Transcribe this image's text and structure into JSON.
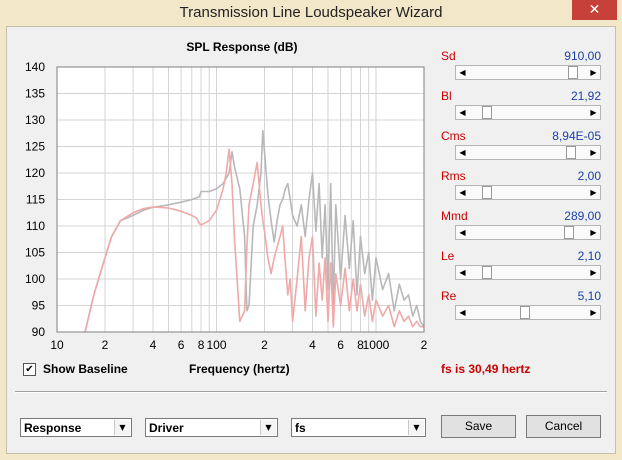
{
  "window": {
    "title": "Transmission Line Loudspeaker Wizard",
    "close_glyph": "✕"
  },
  "chart_title": "SPL Response (dB)",
  "chart_data": {
    "type": "line",
    "title": "SPL Response (dB)",
    "xlabel": "Frequency (hertz)",
    "ylabel": "",
    "xscale": "log",
    "xlim": [
      10,
      2000
    ],
    "ylim": [
      90,
      140
    ],
    "yticks": [
      90,
      95,
      100,
      105,
      110,
      115,
      120,
      125,
      130,
      135,
      140
    ],
    "xtick_labels": [
      {
        "x": 10,
        "label": "10"
      },
      {
        "x": 20,
        "label": "2"
      },
      {
        "x": 40,
        "label": "4"
      },
      {
        "x": 60,
        "label": "6"
      },
      {
        "x": 80,
        "label": "8"
      },
      {
        "x": 100,
        "label": "100"
      },
      {
        "x": 200,
        "label": "2"
      },
      {
        "x": 400,
        "label": "4"
      },
      {
        "x": 600,
        "label": "6"
      },
      {
        "x": 800,
        "label": "8"
      },
      {
        "x": 1000,
        "label": "1000"
      },
      {
        "x": 2000,
        "label": "2"
      }
    ],
    "grid": true,
    "series": [
      {
        "color": "#b8b8b8",
        "x": [
          15,
          17,
          20,
          22,
          25,
          30,
          35,
          40,
          50,
          60,
          70,
          75,
          78,
          80,
          90,
          100,
          110,
          120,
          125,
          130,
          140,
          150,
          155,
          160,
          170,
          180,
          190,
          195,
          200,
          210,
          220,
          230,
          240,
          250,
          260,
          270,
          280,
          300,
          320,
          340,
          360,
          380,
          400,
          420,
          440,
          460,
          480,
          500,
          520,
          540,
          560,
          600,
          640,
          680,
          720,
          760,
          800,
          850,
          900,
          950,
          1000,
          1100,
          1200,
          1300,
          1400,
          1500,
          1600,
          1700,
          1800,
          1900,
          2000
        ],
        "y": [
          90,
          97,
          104,
          108,
          111,
          112,
          113,
          113.5,
          114,
          114.5,
          115,
          115.3,
          115.5,
          116.5,
          116.5,
          117,
          118,
          120,
          124,
          121,
          117,
          108,
          94,
          95,
          110,
          114,
          120,
          128,
          124,
          116,
          111,
          107,
          111,
          114,
          115,
          117,
          118,
          112,
          110,
          114,
          108,
          115,
          120,
          109,
          118,
          104,
          114,
          98,
          118,
          95,
          114,
          100,
          112,
          102,
          111,
          97,
          108,
          101,
          105,
          96,
          104,
          98,
          101,
          94,
          99,
          96,
          97,
          93,
          95,
          92,
          91
        ]
      },
      {
        "color": "#f0a8a8",
        "x": [
          15,
          17,
          20,
          22,
          25,
          30,
          35,
          40,
          50,
          60,
          70,
          75,
          78,
          80,
          90,
          100,
          110,
          115,
          120,
          125,
          130,
          140,
          150,
          155,
          160,
          170,
          180,
          190,
          195,
          200,
          210,
          220,
          230,
          240,
          250,
          260,
          270,
          280,
          290,
          300,
          320,
          340,
          360,
          380,
          400,
          420,
          440,
          460,
          480,
          500,
          520,
          540,
          560,
          600,
          640,
          680,
          720,
          760,
          800,
          850,
          900,
          950,
          1000,
          1100,
          1200,
          1300,
          1400,
          1500,
          1600,
          1700,
          1800,
          1900,
          2000
        ],
        "y": [
          90,
          97,
          104,
          108,
          111,
          112.5,
          113.3,
          113.6,
          113.4,
          112.8,
          112,
          111.5,
          110.5,
          110.2,
          111,
          113,
          117,
          120,
          124.5,
          118,
          107,
          92,
          94,
          106,
          114,
          118,
          122,
          114,
          111,
          109,
          104,
          101,
          104,
          106,
          108,
          110,
          103,
          97,
          100,
          92,
          100,
          108,
          94,
          104,
          108,
          93,
          103,
          96,
          104,
          92,
          103,
          91,
          101,
          95,
          102,
          94,
          100,
          94,
          99,
          93,
          97,
          92,
          96,
          93,
          95,
          91,
          94,
          92,
          93,
          91,
          92,
          91,
          91
        ]
      }
    ]
  },
  "labels": {
    "show_baseline": "Show Baseline",
    "frequency_axis": "Frequency (hertz)",
    "fs_status": "fs is 30,49 hertz"
  },
  "show_baseline_checked": true,
  "check_glyph": "✔",
  "params": [
    {
      "name": "Sd",
      "value": "910,00",
      "position": 0.92
    },
    {
      "name": "Bl",
      "value": "21,92",
      "position": 0.12
    },
    {
      "name": "Cms",
      "value": "8,94E-05",
      "position": 0.9
    },
    {
      "name": "Rms",
      "value": "2,00",
      "position": 0.12
    },
    {
      "name": "Mmd",
      "value": "289,00",
      "position": 0.88
    },
    {
      "name": "Le",
      "value": "2,10",
      "position": 0.12
    },
    {
      "name": "Re",
      "value": "5,10",
      "position": 0.47
    }
  ],
  "arrows": {
    "left": "◀",
    "right": "▶",
    "down": "▼"
  },
  "dropdowns": {
    "view": "Response",
    "component": "Driver",
    "parameter": "fs"
  },
  "buttons": {
    "save": "Save",
    "cancel": "Cancel"
  }
}
